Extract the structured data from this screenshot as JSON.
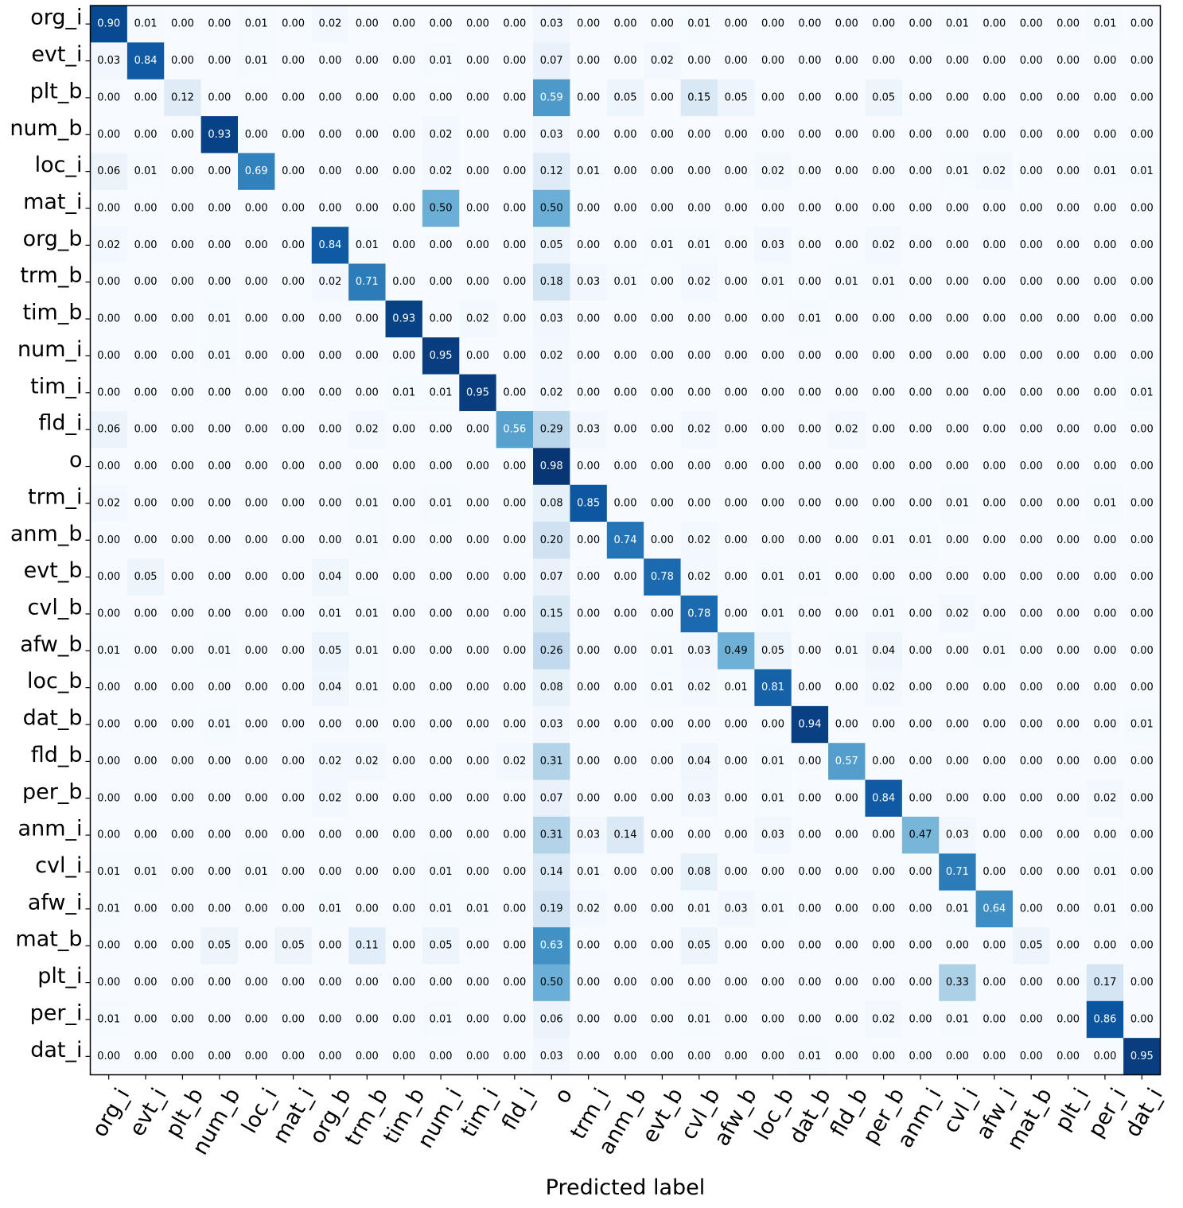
{
  "chart_data": {
    "type": "heatmap",
    "title": "",
    "xlabel": "Predicted label",
    "ylabel": "",
    "colormap": "Blues",
    "value_range": [
      0,
      1
    ],
    "row_labels": [
      "org_i",
      "evt_i",
      "plt_b",
      "num_b",
      "loc_i",
      "mat_i",
      "org_b",
      "trm_b",
      "tim_b",
      "num_i",
      "tim_i",
      "fld_i",
      "o",
      "trm_i",
      "anm_b",
      "evt_b",
      "cvl_b",
      "afw_b",
      "loc_b",
      "dat_b",
      "fld_b",
      "per_b",
      "anm_i",
      "cvl_i",
      "afw_i",
      "mat_b",
      "plt_i",
      "per_i",
      "dat_i"
    ],
    "col_labels": [
      "org_i",
      "evt_i",
      "plt_b",
      "num_b",
      "loc_i",
      "mat_i",
      "org_b",
      "trm_b",
      "tim_b",
      "num_i",
      "tim_i",
      "fld_i",
      "o",
      "trm_i",
      "anm_b",
      "evt_b",
      "cvl_b",
      "afw_b",
      "loc_b",
      "dat_b",
      "fld_b",
      "per_b",
      "anm_i",
      "cvl_i",
      "afw_i",
      "mat_b",
      "plt_i",
      "per_i",
      "dat_i"
    ],
    "values": [
      [
        0.9,
        0.01,
        0.0,
        0.0,
        0.01,
        0.0,
        0.02,
        0.0,
        0.0,
        0.0,
        0.0,
        0.0,
        0.03,
        0.0,
        0.0,
        0.0,
        0.01,
        0.0,
        0.0,
        0.0,
        0.0,
        0.0,
        0.0,
        0.01,
        0.0,
        0.0,
        0.0,
        0.01,
        0.0
      ],
      [
        0.03,
        0.84,
        0.0,
        0.0,
        0.01,
        0.0,
        0.0,
        0.0,
        0.0,
        0.01,
        0.0,
        0.0,
        0.07,
        0.0,
        0.0,
        0.02,
        0.0,
        0.0,
        0.0,
        0.0,
        0.0,
        0.0,
        0.0,
        0.0,
        0.0,
        0.0,
        0.0,
        0.0,
        0.0
      ],
      [
        0.0,
        0.0,
        0.12,
        0.0,
        0.0,
        0.0,
        0.0,
        0.0,
        0.0,
        0.0,
        0.0,
        0.0,
        0.59,
        0.0,
        0.05,
        0.0,
        0.15,
        0.05,
        0.0,
        0.0,
        0.0,
        0.05,
        0.0,
        0.0,
        0.0,
        0.0,
        0.0,
        0.0,
        0.0
      ],
      [
        0.0,
        0.0,
        0.0,
        0.93,
        0.0,
        0.0,
        0.0,
        0.0,
        0.0,
        0.02,
        0.0,
        0.0,
        0.03,
        0.0,
        0.0,
        0.0,
        0.0,
        0.0,
        0.0,
        0.0,
        0.0,
        0.0,
        0.0,
        0.0,
        0.0,
        0.0,
        0.0,
        0.0,
        0.0
      ],
      [
        0.06,
        0.01,
        0.0,
        0.0,
        0.69,
        0.0,
        0.0,
        0.0,
        0.0,
        0.02,
        0.0,
        0.0,
        0.12,
        0.01,
        0.0,
        0.0,
        0.0,
        0.0,
        0.02,
        0.0,
        0.0,
        0.0,
        0.0,
        0.01,
        0.02,
        0.0,
        0.0,
        0.01,
        0.01
      ],
      [
        0.0,
        0.0,
        0.0,
        0.0,
        0.0,
        0.0,
        0.0,
        0.0,
        0.0,
        0.5,
        0.0,
        0.0,
        0.5,
        0.0,
        0.0,
        0.0,
        0.0,
        0.0,
        0.0,
        0.0,
        0.0,
        0.0,
        0.0,
        0.0,
        0.0,
        0.0,
        0.0,
        0.0,
        0.0
      ],
      [
        0.02,
        0.0,
        0.0,
        0.0,
        0.0,
        0.0,
        0.84,
        0.01,
        0.0,
        0.0,
        0.0,
        0.0,
        0.05,
        0.0,
        0.0,
        0.01,
        0.01,
        0.0,
        0.03,
        0.0,
        0.0,
        0.02,
        0.0,
        0.0,
        0.0,
        0.0,
        0.0,
        0.0,
        0.0
      ],
      [
        0.0,
        0.0,
        0.0,
        0.0,
        0.0,
        0.0,
        0.02,
        0.71,
        0.0,
        0.0,
        0.0,
        0.0,
        0.18,
        0.03,
        0.01,
        0.0,
        0.02,
        0.0,
        0.01,
        0.0,
        0.01,
        0.01,
        0.0,
        0.0,
        0.0,
        0.0,
        0.0,
        0.0,
        0.0
      ],
      [
        0.0,
        0.0,
        0.0,
        0.01,
        0.0,
        0.0,
        0.0,
        0.0,
        0.93,
        0.0,
        0.02,
        0.0,
        0.03,
        0.0,
        0.0,
        0.0,
        0.0,
        0.0,
        0.0,
        0.01,
        0.0,
        0.0,
        0.0,
        0.0,
        0.0,
        0.0,
        0.0,
        0.0,
        0.0
      ],
      [
        0.0,
        0.0,
        0.0,
        0.01,
        0.0,
        0.0,
        0.0,
        0.0,
        0.0,
        0.95,
        0.0,
        0.0,
        0.02,
        0.0,
        0.0,
        0.0,
        0.0,
        0.0,
        0.0,
        0.0,
        0.0,
        0.0,
        0.0,
        0.0,
        0.0,
        0.0,
        0.0,
        0.0,
        0.0
      ],
      [
        0.0,
        0.0,
        0.0,
        0.0,
        0.0,
        0.0,
        0.0,
        0.0,
        0.01,
        0.01,
        0.95,
        0.0,
        0.02,
        0.0,
        0.0,
        0.0,
        0.0,
        0.0,
        0.0,
        0.0,
        0.0,
        0.0,
        0.0,
        0.0,
        0.0,
        0.0,
        0.0,
        0.0,
        0.01
      ],
      [
        0.06,
        0.0,
        0.0,
        0.0,
        0.0,
        0.0,
        0.0,
        0.02,
        0.0,
        0.0,
        0.0,
        0.56,
        0.29,
        0.03,
        0.0,
        0.0,
        0.02,
        0.0,
        0.0,
        0.0,
        0.02,
        0.0,
        0.0,
        0.0,
        0.0,
        0.0,
        0.0,
        0.0,
        0.0
      ],
      [
        0.0,
        0.0,
        0.0,
        0.0,
        0.0,
        0.0,
        0.0,
        0.0,
        0.0,
        0.0,
        0.0,
        0.0,
        0.98,
        0.0,
        0.0,
        0.0,
        0.0,
        0.0,
        0.0,
        0.0,
        0.0,
        0.0,
        0.0,
        0.0,
        0.0,
        0.0,
        0.0,
        0.0,
        0.0
      ],
      [
        0.02,
        0.0,
        0.0,
        0.0,
        0.0,
        0.0,
        0.0,
        0.01,
        0.0,
        0.01,
        0.0,
        0.0,
        0.08,
        0.85,
        0.0,
        0.0,
        0.0,
        0.0,
        0.0,
        0.0,
        0.0,
        0.0,
        0.0,
        0.01,
        0.0,
        0.0,
        0.0,
        0.01,
        0.0
      ],
      [
        0.0,
        0.0,
        0.0,
        0.0,
        0.0,
        0.0,
        0.0,
        0.01,
        0.0,
        0.0,
        0.0,
        0.0,
        0.2,
        0.0,
        0.74,
        0.0,
        0.02,
        0.0,
        0.0,
        0.0,
        0.0,
        0.01,
        0.01,
        0.0,
        0.0,
        0.0,
        0.0,
        0.0,
        0.0
      ],
      [
        0.0,
        0.05,
        0.0,
        0.0,
        0.0,
        0.0,
        0.04,
        0.0,
        0.0,
        0.0,
        0.0,
        0.0,
        0.07,
        0.0,
        0.0,
        0.78,
        0.02,
        0.0,
        0.01,
        0.01,
        0.0,
        0.0,
        0.0,
        0.0,
        0.0,
        0.0,
        0.0,
        0.0,
        0.0
      ],
      [
        0.0,
        0.0,
        0.0,
        0.0,
        0.0,
        0.0,
        0.01,
        0.01,
        0.0,
        0.0,
        0.0,
        0.0,
        0.15,
        0.0,
        0.0,
        0.0,
        0.78,
        0.0,
        0.01,
        0.0,
        0.0,
        0.01,
        0.0,
        0.02,
        0.0,
        0.0,
        0.0,
        0.0,
        0.0
      ],
      [
        0.01,
        0.0,
        0.0,
        0.01,
        0.0,
        0.0,
        0.05,
        0.01,
        0.0,
        0.0,
        0.0,
        0.0,
        0.26,
        0.0,
        0.0,
        0.01,
        0.03,
        0.49,
        0.05,
        0.0,
        0.01,
        0.04,
        0.0,
        0.0,
        0.01,
        0.0,
        0.0,
        0.0,
        0.0
      ],
      [
        0.0,
        0.0,
        0.0,
        0.0,
        0.0,
        0.0,
        0.04,
        0.01,
        0.0,
        0.0,
        0.0,
        0.0,
        0.08,
        0.0,
        0.0,
        0.01,
        0.02,
        0.01,
        0.81,
        0.0,
        0.0,
        0.02,
        0.0,
        0.0,
        0.0,
        0.0,
        0.0,
        0.0,
        0.0
      ],
      [
        0.0,
        0.0,
        0.0,
        0.01,
        0.0,
        0.0,
        0.0,
        0.0,
        0.0,
        0.0,
        0.0,
        0.0,
        0.03,
        0.0,
        0.0,
        0.0,
        0.0,
        0.0,
        0.0,
        0.94,
        0.0,
        0.0,
        0.0,
        0.0,
        0.0,
        0.0,
        0.0,
        0.0,
        0.01
      ],
      [
        0.0,
        0.0,
        0.0,
        0.0,
        0.0,
        0.0,
        0.02,
        0.02,
        0.0,
        0.0,
        0.0,
        0.02,
        0.31,
        0.0,
        0.0,
        0.0,
        0.04,
        0.0,
        0.01,
        0.0,
        0.57,
        0.0,
        0.0,
        0.0,
        0.0,
        0.0,
        0.0,
        0.0,
        0.0
      ],
      [
        0.0,
        0.0,
        0.0,
        0.0,
        0.0,
        0.0,
        0.02,
        0.0,
        0.0,
        0.0,
        0.0,
        0.0,
        0.07,
        0.0,
        0.0,
        0.0,
        0.03,
        0.0,
        0.01,
        0.0,
        0.0,
        0.84,
        0.0,
        0.0,
        0.0,
        0.0,
        0.0,
        0.02,
        0.0
      ],
      [
        0.0,
        0.0,
        0.0,
        0.0,
        0.0,
        0.0,
        0.0,
        0.0,
        0.0,
        0.0,
        0.0,
        0.0,
        0.31,
        0.03,
        0.14,
        0.0,
        0.0,
        0.0,
        0.03,
        0.0,
        0.0,
        0.0,
        0.47,
        0.03,
        0.0,
        0.0,
        0.0,
        0.0,
        0.0
      ],
      [
        0.01,
        0.01,
        0.0,
        0.0,
        0.01,
        0.0,
        0.0,
        0.0,
        0.0,
        0.01,
        0.0,
        0.0,
        0.14,
        0.01,
        0.0,
        0.0,
        0.08,
        0.0,
        0.0,
        0.0,
        0.0,
        0.0,
        0.0,
        0.71,
        0.0,
        0.0,
        0.0,
        0.01,
        0.0
      ],
      [
        0.01,
        0.0,
        0.0,
        0.0,
        0.0,
        0.0,
        0.01,
        0.0,
        0.0,
        0.01,
        0.01,
        0.0,
        0.19,
        0.02,
        0.0,
        0.0,
        0.01,
        0.03,
        0.01,
        0.0,
        0.0,
        0.0,
        0.0,
        0.01,
        0.64,
        0.0,
        0.0,
        0.01,
        0.0
      ],
      [
        0.0,
        0.0,
        0.0,
        0.05,
        0.0,
        0.05,
        0.0,
        0.11,
        0.0,
        0.05,
        0.0,
        0.0,
        0.63,
        0.0,
        0.0,
        0.0,
        0.05,
        0.0,
        0.0,
        0.0,
        0.0,
        0.0,
        0.0,
        0.0,
        0.0,
        0.05,
        0.0,
        0.0,
        0.0
      ],
      [
        0.0,
        0.0,
        0.0,
        0.0,
        0.0,
        0.0,
        0.0,
        0.0,
        0.0,
        0.0,
        0.0,
        0.0,
        0.5,
        0.0,
        0.0,
        0.0,
        0.0,
        0.0,
        0.0,
        0.0,
        0.0,
        0.0,
        0.0,
        0.33,
        0.0,
        0.0,
        0.0,
        0.17,
        0.0
      ],
      [
        0.01,
        0.0,
        0.0,
        0.0,
        0.0,
        0.0,
        0.0,
        0.0,
        0.0,
        0.01,
        0.0,
        0.0,
        0.06,
        0.0,
        0.0,
        0.0,
        0.01,
        0.0,
        0.0,
        0.0,
        0.0,
        0.02,
        0.0,
        0.01,
        0.0,
        0.0,
        0.0,
        0.86,
        0.0
      ],
      [
        0.0,
        0.0,
        0.0,
        0.0,
        0.0,
        0.0,
        0.0,
        0.0,
        0.0,
        0.0,
        0.0,
        0.0,
        0.03,
        0.0,
        0.0,
        0.0,
        0.0,
        0.0,
        0.0,
        0.01,
        0.0,
        0.0,
        0.0,
        0.0,
        0.0,
        0.0,
        0.0,
        0.0,
        0.95
      ]
    ]
  }
}
